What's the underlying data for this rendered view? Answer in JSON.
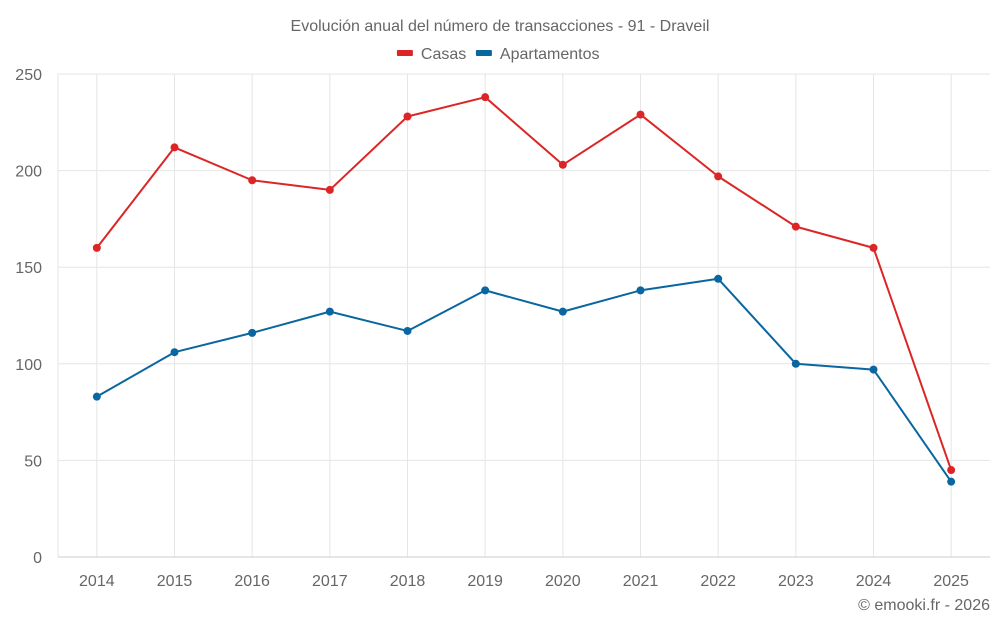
{
  "chart_data": {
    "type": "line",
    "title": "Evolución anual del número de transacciones - 91 - Draveil",
    "xlabel": "",
    "ylabel": "",
    "categories": [
      "2014",
      "2015",
      "2016",
      "2017",
      "2018",
      "2019",
      "2020",
      "2021",
      "2022",
      "2023",
      "2024",
      "2025"
    ],
    "series": [
      {
        "name": "Casas",
        "color": "#dc2626",
        "values": [
          160,
          212,
          195,
          190,
          228,
          238,
          203,
          229,
          197,
          171,
          160,
          45
        ]
      },
      {
        "name": "Apartamentos",
        "color": "#0a66a0",
        "values": [
          83,
          106,
          116,
          127,
          117,
          138,
          127,
          138,
          144,
          100,
          97,
          39
        ]
      }
    ],
    "ylim": [
      0,
      250
    ],
    "yticks": [
      0,
      50,
      100,
      150,
      200,
      250
    ],
    "grid": true,
    "legend_position": "top-center"
  },
  "credit": "© emooki.fr - 2026"
}
